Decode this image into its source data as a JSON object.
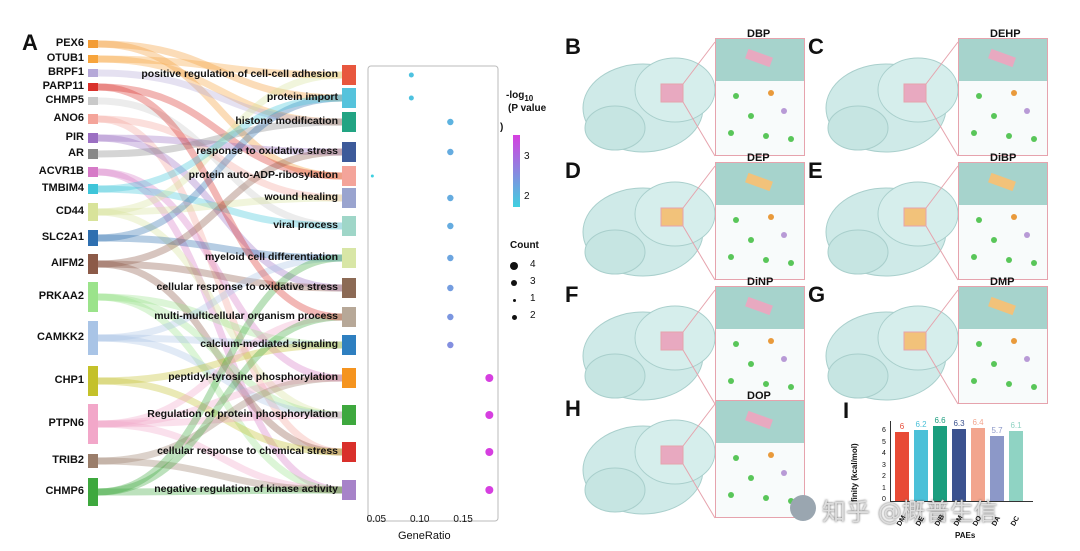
{
  "panel_A": {
    "letter": "A",
    "genes": [
      "PEX6",
      "OTUB1",
      "BRPF1",
      "PARP11",
      "CHMP5",
      "ANO6",
      "PIR",
      "AR",
      "ACVR1B",
      "TMBIM4",
      "CD44",
      "SLC2A1",
      "AIFM2",
      "PRKAA2",
      "CAMKK2",
      "CHP1",
      "PTPN6",
      "TRIB2",
      "CHMP6"
    ],
    "gene_colors": [
      "#f39c35",
      "#f7a43b",
      "#b5a8d8",
      "#d9302b",
      "#c9c9c9",
      "#f4a49a",
      "#9b6fc2",
      "#888888",
      "#d67ac7",
      "#3ec5d9",
      "#d8e39a",
      "#2e6fb0",
      "#8c5a48",
      "#9be38b",
      "#a9c4e6",
      "#c4c12a",
      "#f2a7c9",
      "#9a7d6a",
      "#3ea83e"
    ],
    "terms": [
      "positive regulation of cell-cell adhesion",
      "protein import",
      "histone modification",
      "response to oxidative stress",
      "protein auto-ADP-ribosylation",
      "wound healing",
      "viral process",
      "myeloid cell differentiation",
      "cellular response to oxidative stress",
      "multi-multicellular organism process",
      "calcium-mediated signaling",
      "peptidyl-tyrosine phosphorylation",
      "Regulation of protein phosphorylation",
      "cellular response to chemical stress",
      "negative regulation of kinase activity"
    ],
    "term_colors": [
      "#e8573e",
      "#55c3dc",
      "#22a483",
      "#3d5a9a",
      "#f4a49a",
      "#9aa4cf",
      "#9fd6c8",
      "#d8e6a6",
      "#8c6a55",
      "#b7a898",
      "#2e7fc0",
      "#f5941f",
      "#3ea83e",
      "#d9302b",
      "#a783c9"
    ]
  },
  "chart_data": {
    "type": "scatter",
    "title": "",
    "xlabel": "GeneRatio",
    "ylabel": "",
    "xlim": [
      0.04,
      0.19
    ],
    "x_ticks": [
      "0.05",
      "0.10",
      "0.15"
    ],
    "categories": [
      "positive regulation of cell-cell adhesion",
      "protein import",
      "histone modification",
      "response to oxidative stress",
      "protein auto-ADP-ribosylation",
      "wound healing",
      "viral process",
      "myeloid cell differentiation",
      "cellular response to oxidative stress",
      "multi-multicellular organism process",
      "calcium-mediated signaling",
      "peptidyl-tyrosine phosphorylation",
      "Regulation of protein phosphorylation",
      "cellular response to chemical stress",
      "negative regulation of kinase activity"
    ],
    "x": [
      0.09,
      0.09,
      0.135,
      0.135,
      0.045,
      0.135,
      0.135,
      0.135,
      0.135,
      0.135,
      0.135,
      0.18,
      0.18,
      0.18,
      0.18
    ],
    "count": [
      2,
      2,
      3,
      3,
      1,
      3,
      3,
      3,
      3,
      3,
      3,
      4,
      4,
      4,
      4
    ],
    "neg_log10_p": [
      1.8,
      1.8,
      2.0,
      2.1,
      1.6,
      2.1,
      2.1,
      2.2,
      2.3,
      2.4,
      2.5,
      3.6,
      3.6,
      3.6,
      3.6
    ],
    "color_legend": {
      "title_line1": "-log",
      "title_sub": "10",
      "title_line2": "(P value",
      "paren": ")",
      "ticks": [
        "3",
        "2"
      ],
      "low_color": "#3fd0e0",
      "high_color": "#d63fe0"
    },
    "size_legend": {
      "title": "Count",
      "labels": [
        "4",
        "3",
        "1",
        "2"
      ]
    }
  },
  "structures": [
    {
      "letter": "B",
      "name": "DBP"
    },
    {
      "letter": "C",
      "name": "DEHP"
    },
    {
      "letter": "D",
      "name": "DEP"
    },
    {
      "letter": "E",
      "name": "DiBP"
    },
    {
      "letter": "F",
      "name": "DiNP"
    },
    {
      "letter": "G",
      "name": "DMP"
    },
    {
      "letter": "H",
      "name": "DOP"
    }
  ],
  "panel_I": {
    "letter": "I",
    "ylabel": "finity (kcal/mol)",
    "xlabel": "PAEs",
    "y_ticks": [
      "6",
      "5",
      "4",
      "3",
      "2",
      "1",
      "0"
    ],
    "bars": [
      {
        "label": "DM",
        "value": 6,
        "value_text": "6",
        "color": "#e84a35"
      },
      {
        "label": "DE",
        "value": 6.2,
        "value_text": "6.2",
        "color": "#4bc0d8"
      },
      {
        "label": "DiB",
        "value": 6.6,
        "value_text": "6.6",
        "color": "#1b9e7e"
      },
      {
        "label": "DM",
        "value": 6.3,
        "value_text": "6.3",
        "color": "#3b528f"
      },
      {
        "label": "DO",
        "value": 6.4,
        "value_text": "6.4",
        "color": "#f2a58e"
      },
      {
        "label": "DA",
        "value": 5.7,
        "value_text": "5.7",
        "color": "#8c98c8"
      },
      {
        "label": "DC",
        "value": 6.1,
        "value_text": "6.1",
        "color": "#8fd3c3"
      }
    ]
  },
  "watermark": "知乎 @概普生信"
}
